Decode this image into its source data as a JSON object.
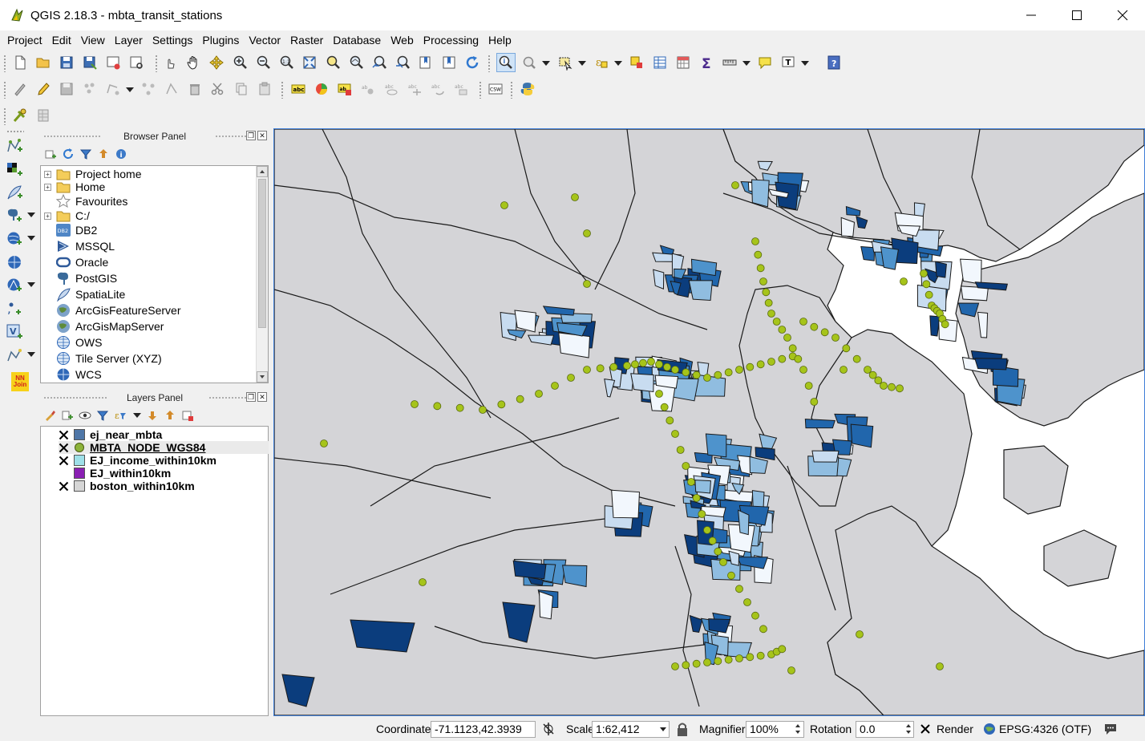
{
  "window": {
    "title": "QGIS 2.18.3 - mbta_transit_stations",
    "icons": {
      "app": "qgis-logo-icon",
      "minimize": "minimize-icon",
      "maximize": "maximize-icon",
      "close": "close-icon"
    }
  },
  "menu": [
    "Project",
    "Edit",
    "View",
    "Layer",
    "Settings",
    "Plugins",
    "Vector",
    "Raster",
    "Database",
    "Web",
    "Processing",
    "Help"
  ],
  "plugin_badge": {
    "line1": "NN",
    "line2": "Join"
  },
  "browser_panel": {
    "title": "Browser Panel",
    "items": [
      {
        "label": "Project home",
        "icon": "folder-icon",
        "expandable": true
      },
      {
        "label": "Home",
        "icon": "folder-icon",
        "expandable": true
      },
      {
        "label": "Favourites",
        "icon": "star-icon",
        "expandable": false
      },
      {
        "label": "C:/",
        "icon": "folder-icon",
        "expandable": true
      },
      {
        "label": "DB2",
        "icon": "db2-icon",
        "expandable": false,
        "badge": "DB2"
      },
      {
        "label": "MSSQL",
        "icon": "mssql-icon",
        "expandable": false
      },
      {
        "label": "Oracle",
        "icon": "oracle-icon",
        "expandable": false
      },
      {
        "label": "PostGIS",
        "icon": "postgis-elephant-icon",
        "expandable": false
      },
      {
        "label": "SpatiaLite",
        "icon": "spatialite-feather-icon",
        "expandable": false
      },
      {
        "label": "ArcGisFeatureServer",
        "icon": "arcgis-globe-icon",
        "expandable": false
      },
      {
        "label": "ArcGisMapServer",
        "icon": "arcgis-globe-icon",
        "expandable": false
      },
      {
        "label": "OWS",
        "icon": "ows-globe-icon",
        "expandable": false
      },
      {
        "label": "Tile Server (XYZ)",
        "icon": "xyz-globe-icon",
        "expandable": false
      },
      {
        "label": "WCS",
        "icon": "wcs-globe-icon",
        "expandable": false
      }
    ]
  },
  "layers_panel": {
    "title": "Layers Panel",
    "layers": [
      {
        "name": "ej_near_mbta",
        "visible": true,
        "symbol": "#4f77a8",
        "symbol_shape": "square"
      },
      {
        "name": "MBTA_NODE_WGS84",
        "visible": true,
        "symbol": "#8db33a",
        "symbol_shape": "circle",
        "selected": true
      },
      {
        "name": "EJ_income_within10km",
        "visible": true,
        "symbol": "#9ee0e8",
        "symbol_shape": "square"
      },
      {
        "name": "EJ_within10km",
        "visible": false,
        "symbol": "#8a1fb3",
        "symbol_shape": "square"
      },
      {
        "name": "boston_within10km",
        "visible": true,
        "symbol": "#d6d6d6",
        "symbol_shape": "square"
      }
    ]
  },
  "map_colors": {
    "land": "#d4d4d7",
    "water": "#ffffff",
    "stroke": "#1a1a1a",
    "station": "#a6c41a",
    "station_stroke": "#5a6b10",
    "choropleth": [
      "#f2f7fd",
      "#c8dcf0",
      "#90bde0",
      "#4e93cc",
      "#2166ac",
      "#0b3d7d"
    ]
  },
  "status": {
    "coordinate_label": "Coordinate",
    "coordinate_value": "-71.1123,42.3939",
    "scale_label": "Scale",
    "scale_value": "1:62,412",
    "magnifier_label": "Magnifier",
    "magnifier_value": "100%",
    "rotation_label": "Rotation",
    "rotation_value": "0.0",
    "render_label": "Render",
    "render_checked": true,
    "crs": "EPSG:4326 (OTF)"
  }
}
